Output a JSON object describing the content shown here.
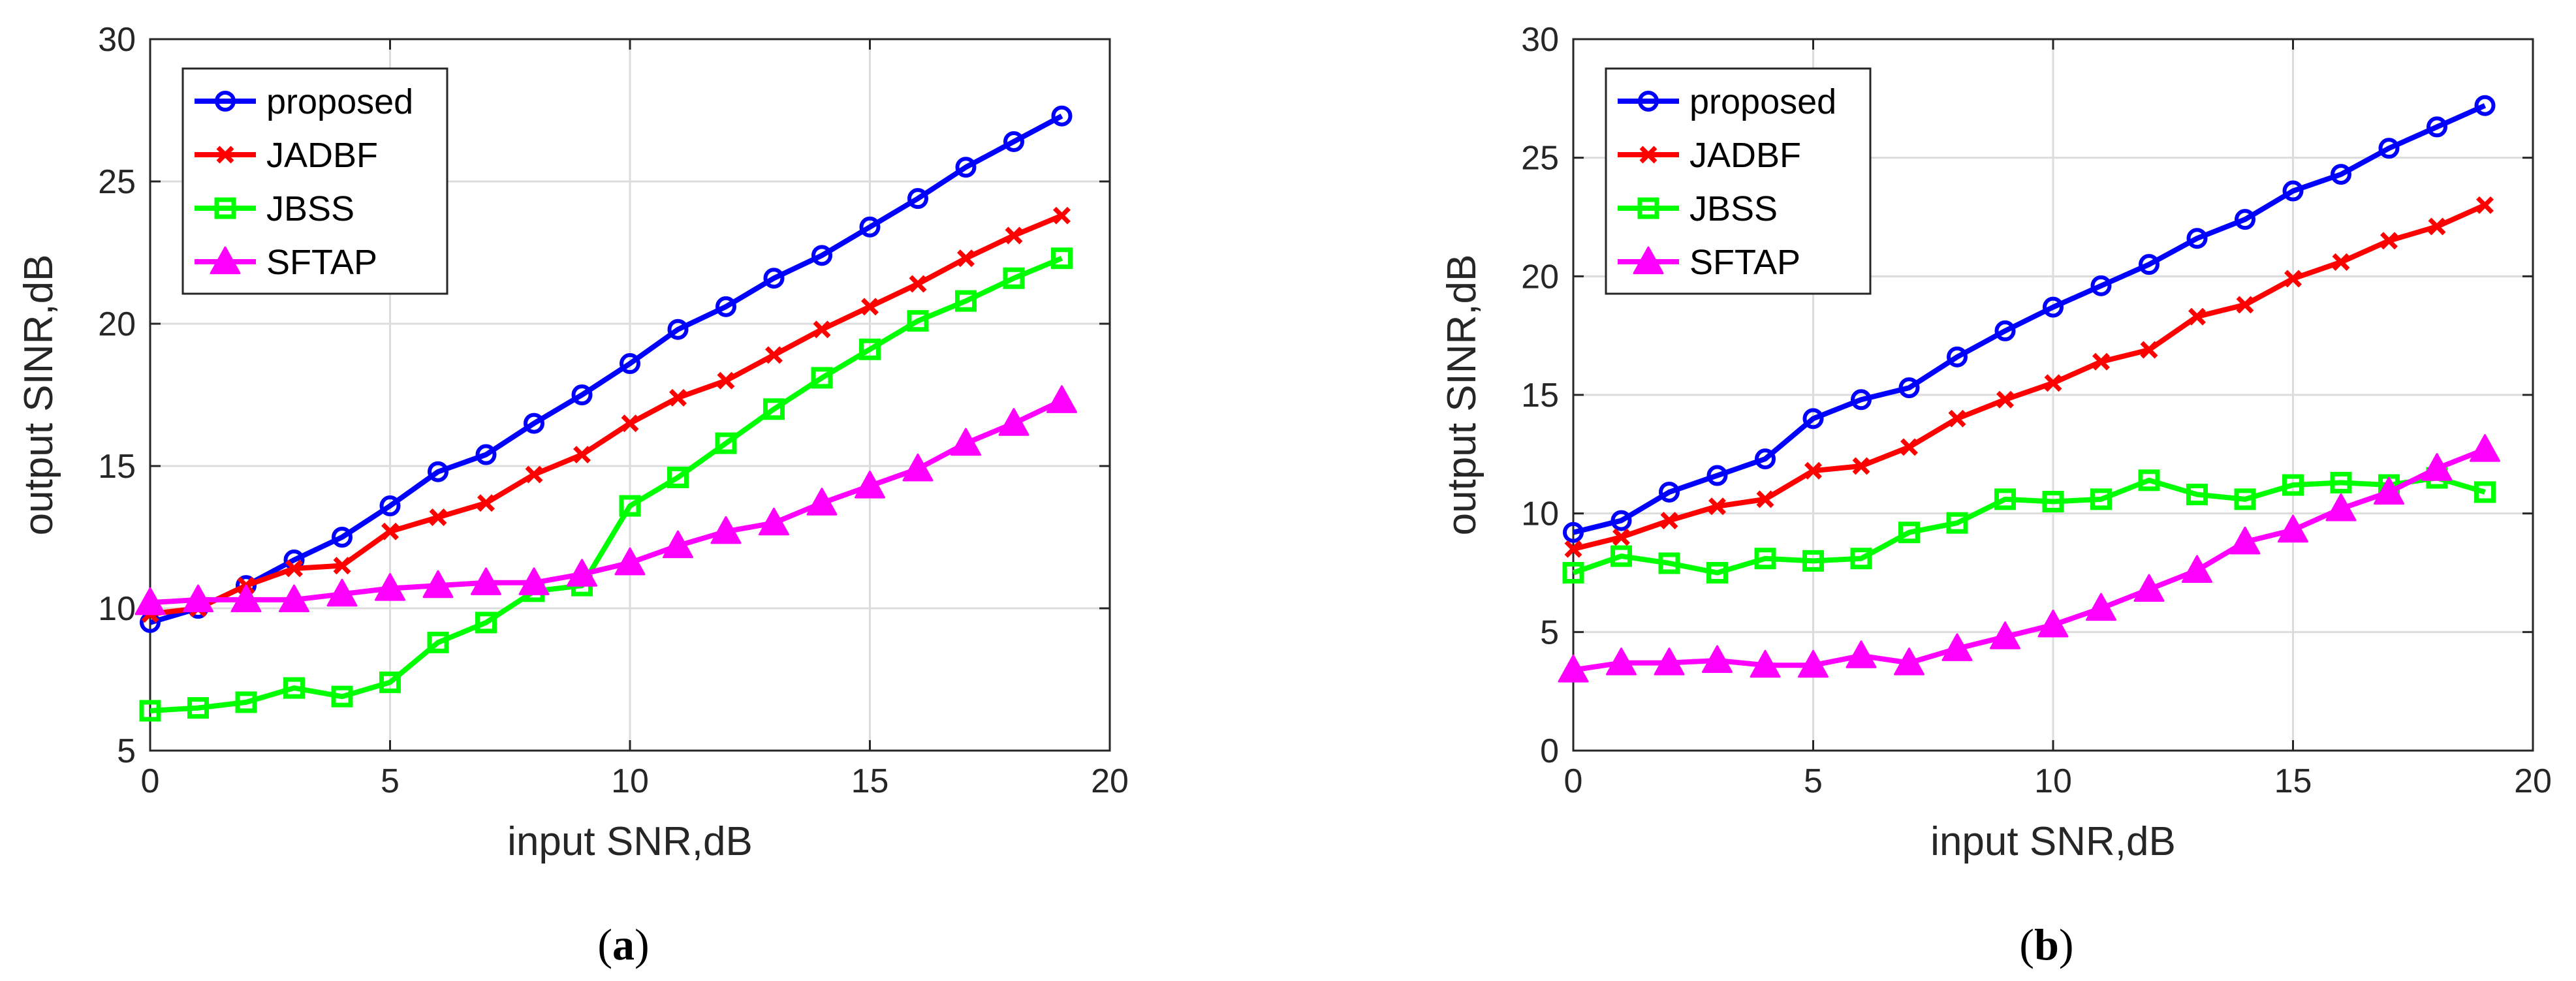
{
  "chart_data": [
    {
      "type": "line",
      "caption": "a",
      "xlabel": "input SNR,dB",
      "ylabel": "output SINR,dB",
      "xlim": [
        0,
        20
      ],
      "ylim": [
        5,
        30
      ],
      "xticks": [
        0,
        5,
        10,
        15,
        20
      ],
      "yticks": [
        5,
        10,
        15,
        20,
        25,
        30
      ],
      "grid": true,
      "legend_position": "top-left",
      "x": [
        0,
        1,
        2,
        3,
        4,
        5,
        6,
        7,
        8,
        9,
        10,
        11,
        12,
        13,
        14,
        15,
        16,
        17,
        18,
        19
      ],
      "series": [
        {
          "name": "proposed",
          "color": "#0000ff",
          "marker": "circle",
          "values": [
            9.5,
            10.0,
            10.8,
            11.7,
            12.5,
            13.6,
            14.8,
            15.4,
            16.5,
            17.5,
            18.6,
            19.8,
            20.6,
            21.6,
            22.4,
            23.4,
            24.4,
            25.5,
            26.4,
            27.3
          ]
        },
        {
          "name": "JADBF",
          "color": "#ff0000",
          "marker": "x",
          "values": [
            9.8,
            10.0,
            10.8,
            11.4,
            11.5,
            12.7,
            13.2,
            13.7,
            14.7,
            15.4,
            16.5,
            17.4,
            18.0,
            18.9,
            19.8,
            20.6,
            21.4,
            22.3,
            23.1,
            23.8
          ]
        },
        {
          "name": "JBSS",
          "color": "#00ff00",
          "marker": "square",
          "values": [
            6.4,
            6.5,
            6.7,
            7.2,
            6.9,
            7.4,
            8.8,
            9.5,
            10.6,
            10.8,
            13.6,
            14.6,
            15.8,
            17.0,
            18.1,
            19.1,
            20.1,
            20.8,
            21.6,
            22.3
          ]
        },
        {
          "name": "SFTAP",
          "color": "#ff00ff",
          "marker": "triangle",
          "values": [
            10.2,
            10.3,
            10.3,
            10.3,
            10.5,
            10.7,
            10.8,
            10.9,
            10.9,
            11.2,
            11.6,
            12.2,
            12.7,
            13.0,
            13.7,
            14.3,
            14.9,
            15.8,
            16.5,
            17.3
          ]
        }
      ]
    },
    {
      "type": "line",
      "caption": "b",
      "xlabel": "input SNR,dB",
      "ylabel": "output SINR,dB",
      "xlim": [
        0,
        20
      ],
      "ylim": [
        0,
        30
      ],
      "xticks": [
        0,
        5,
        10,
        15,
        20
      ],
      "yticks": [
        0,
        5,
        10,
        15,
        20,
        25,
        30
      ],
      "grid": true,
      "legend_position": "top-left",
      "x": [
        0,
        1,
        2,
        3,
        4,
        5,
        6,
        7,
        8,
        9,
        10,
        11,
        12,
        13,
        14,
        15,
        16,
        17,
        18,
        19
      ],
      "series": [
        {
          "name": "proposed",
          "color": "#0000ff",
          "marker": "circle",
          "values": [
            9.2,
            9.7,
            10.9,
            11.6,
            12.3,
            14.0,
            14.8,
            15.3,
            16.6,
            17.7,
            18.7,
            19.6,
            20.5,
            21.6,
            22.4,
            23.6,
            24.3,
            25.4,
            26.3,
            27.2
          ]
        },
        {
          "name": "JADBF",
          "color": "#ff0000",
          "marker": "x",
          "values": [
            8.5,
            9.0,
            9.7,
            10.3,
            10.6,
            11.8,
            12.0,
            12.8,
            14.0,
            14.8,
            15.5,
            16.4,
            16.9,
            18.3,
            18.8,
            19.9,
            20.6,
            21.5,
            22.1,
            23.0
          ]
        },
        {
          "name": "JBSS",
          "color": "#00ff00",
          "marker": "square",
          "values": [
            7.5,
            8.2,
            7.9,
            7.5,
            8.1,
            8.0,
            8.1,
            9.2,
            9.6,
            10.6,
            10.5,
            10.6,
            11.4,
            10.8,
            10.6,
            11.2,
            11.3,
            11.2,
            11.5,
            10.9
          ]
        },
        {
          "name": "SFTAP",
          "color": "#ff00ff",
          "marker": "triangle",
          "values": [
            3.4,
            3.7,
            3.7,
            3.8,
            3.6,
            3.6,
            4.0,
            3.7,
            4.3,
            4.8,
            5.3,
            6.0,
            6.8,
            7.6,
            8.8,
            9.3,
            10.2,
            10.9,
            11.9,
            12.7
          ]
        }
      ]
    }
  ]
}
